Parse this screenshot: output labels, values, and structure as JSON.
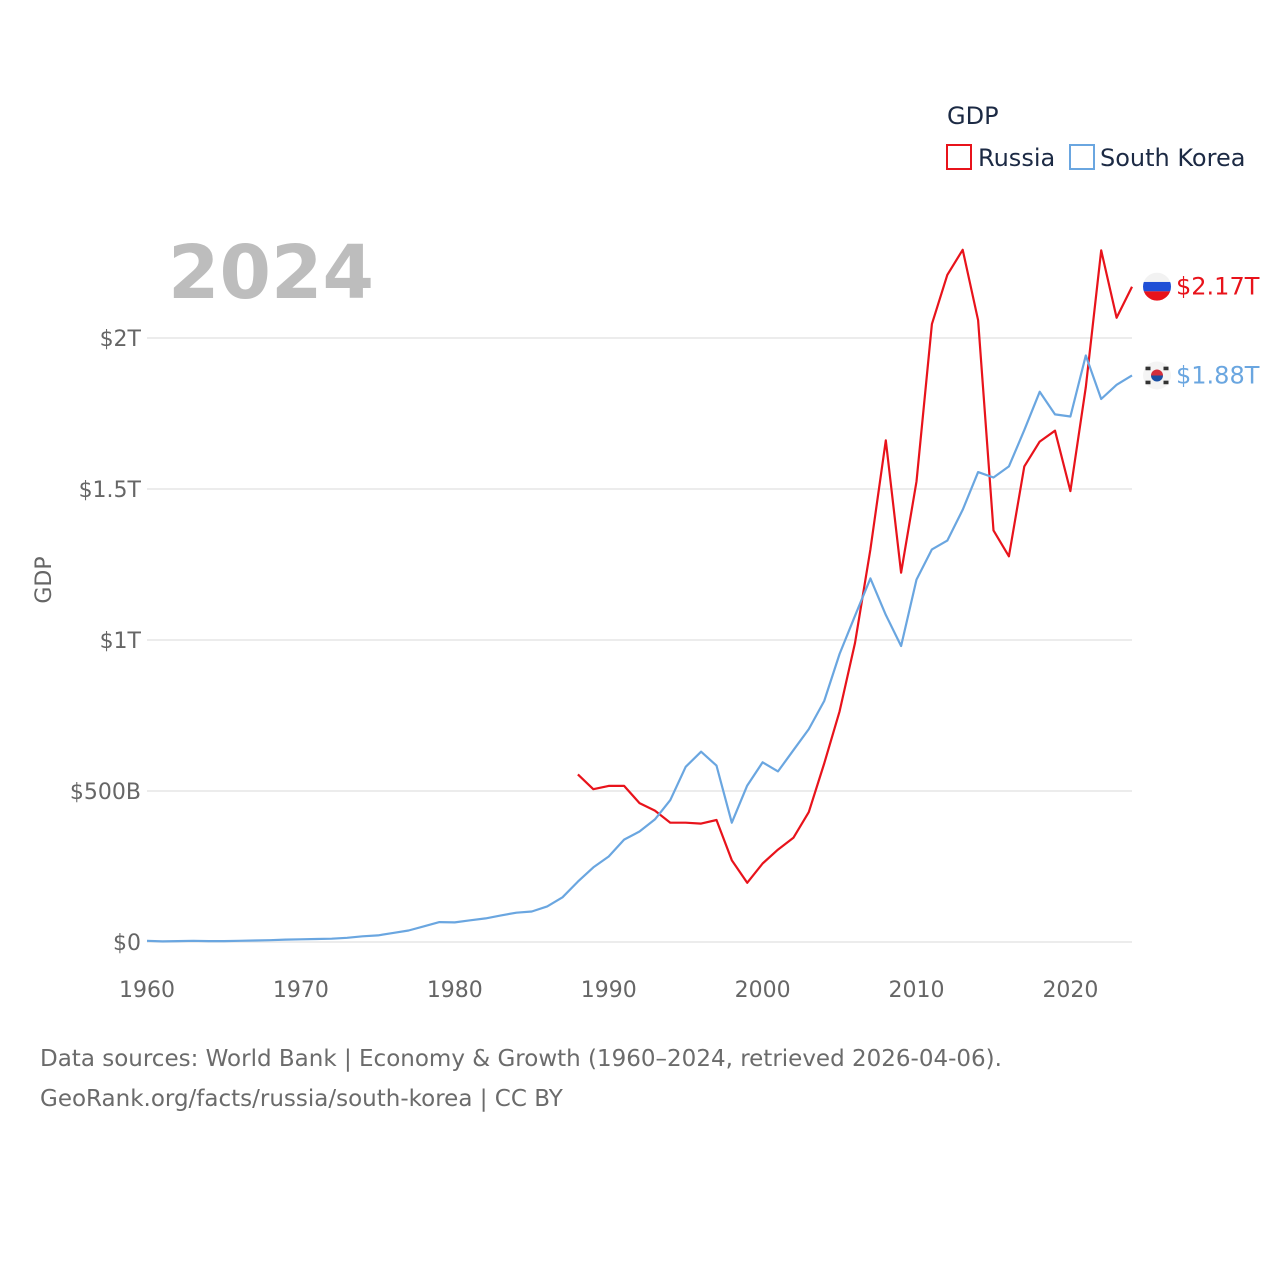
{
  "chart_data": {
    "type": "line",
    "year_label": "2024",
    "ylabel": "GDP",
    "legend_title": "GDP",
    "legend_position": "top-right",
    "xlim": [
      1960,
      2024
    ],
    "ylim": [
      0,
      2300
    ],
    "x_ticks": [
      1960,
      1970,
      1980,
      1990,
      2000,
      2010,
      2020
    ],
    "y_ticks": [
      {
        "value": 0,
        "label": "$0"
      },
      {
        "value": 500,
        "label": "$500B"
      },
      {
        "value": 1000,
        "label": "$1T"
      },
      {
        "value": 1500,
        "label": "$1.5T"
      },
      {
        "value": 2000,
        "label": "$2T"
      }
    ],
    "units": "billions USD",
    "series": [
      {
        "name": "Russia",
        "color": "#e8131b",
        "end_label": "$2.17T",
        "flag": "russia-flag",
        "start_year": 1988,
        "values": [
          555,
          506,
          517,
          517,
          460,
          435,
          395,
          395,
          392,
          404,
          271,
          196,
          260,
          306,
          345,
          430,
          591,
          764,
          990,
          1300,
          1661,
          1223,
          1525,
          2046,
          2209,
          2292,
          2059,
          1363,
          1277,
          1575,
          1657,
          1693,
          1493,
          1837,
          2290,
          2067,
          2170
        ]
      },
      {
        "name": "South Korea",
        "color": "#6aa6e0",
        "end_label": "$1.88T",
        "flag": "south-korea-flag",
        "start_year": 1960,
        "values": [
          4,
          2,
          3,
          4,
          3,
          3,
          4,
          5,
          6,
          8,
          9,
          10,
          11,
          14,
          19,
          22,
          30,
          38,
          52,
          66,
          65,
          72,
          78,
          88,
          97,
          101,
          118,
          148,
          200,
          247,
          283,
          339,
          366,
          406,
          470,
          580,
          630,
          584,
          395,
          518,
          595,
          565,
          635,
          705,
          798,
          954,
          1080,
          1204,
          1083,
          980,
          1200,
          1300,
          1329,
          1431,
          1556,
          1538,
          1575,
          1695,
          1822,
          1747,
          1740,
          1942,
          1798,
          1845,
          1876
        ]
      }
    ]
  },
  "footer": {
    "line1": "Data sources: World Bank | Economy & Growth (1960–2024, retrieved 2026-04-06).",
    "line2": "GeoRank.org/facts/russia/south-korea | CC BY"
  }
}
